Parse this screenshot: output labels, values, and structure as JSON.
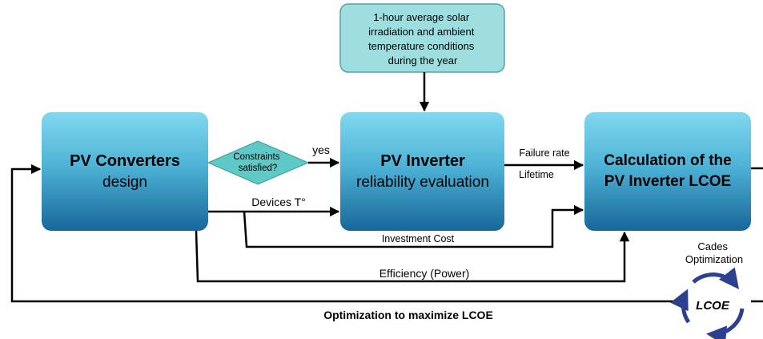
{
  "input_box": {
    "lines": [
      "1-hour average solar",
      "irradiation and ambient",
      "temperature conditions",
      "during the year"
    ]
  },
  "boxes": [
    {
      "title": "PV Converters",
      "subtitle": "design"
    },
    {
      "title": "PV Inverter",
      "subtitle": "reliability  evaluation"
    },
    {
      "title": "Calculation of the",
      "subtitle": "PV Inverter LCOE"
    }
  ],
  "decision": {
    "lines": [
      "Constraints",
      "satisfied?"
    ],
    "yes": "yes"
  },
  "edges": {
    "failure_rate": "Failure rate",
    "lifetime": "Lifetime",
    "devices_t": "Devices T°",
    "investment_cost": "Investment Cost",
    "efficiency": "Efficiency (Power)",
    "feedback": "Optimization to maximize LCOE"
  },
  "optimizer": {
    "lines": [
      "Cades",
      "Optimization"
    ],
    "center": "LCOE"
  }
}
